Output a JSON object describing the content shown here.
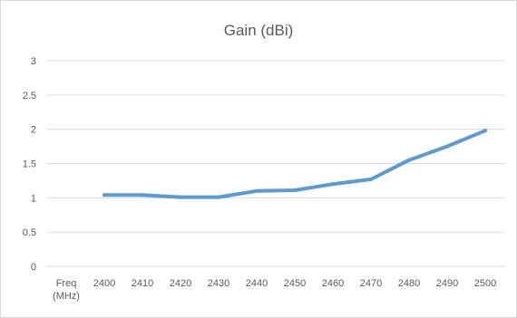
{
  "chart_data": {
    "type": "line",
    "title": "Gain (dBi)",
    "xlabel": "",
    "ylabel": "",
    "categories": [
      "Freq\n(MHz)",
      "2400",
      "2410",
      "2420",
      "2430",
      "2440",
      "2450",
      "2460",
      "2470",
      "2480",
      "2490",
      "2500"
    ],
    "series": [
      {
        "values": [
          null,
          1.04,
          1.04,
          1.01,
          1.01,
          1.1,
          1.11,
          1.2,
          1.27,
          1.55,
          1.75,
          1.98
        ]
      }
    ],
    "ylim": [
      0,
      3
    ],
    "yticks": [
      "0",
      "0.5",
      "1",
      "1.5",
      "2",
      "2.5",
      "3"
    ],
    "grid": true,
    "legend": "none",
    "colors": {
      "line": "#5b9bd5",
      "grid": "#d9d9d9",
      "text": "#595959"
    }
  }
}
